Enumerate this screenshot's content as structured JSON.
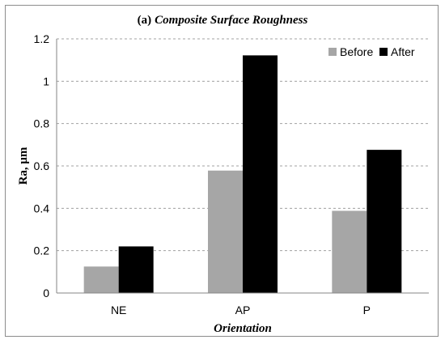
{
  "chart_data": {
    "type": "bar",
    "title_prefix": "(a)",
    "title_main": "Composite Surface Roughness",
    "xlabel": "Orientation",
    "ylabel": "Ra, μm",
    "categories": [
      "NE",
      "AP",
      "P"
    ],
    "series": [
      {
        "name": "Before",
        "values": [
          0.125,
          0.578,
          0.388
        ],
        "color": "#a6a6a6"
      },
      {
        "name": "After",
        "values": [
          0.22,
          1.122,
          0.676
        ],
        "color": "#000000"
      }
    ],
    "ylim": [
      0,
      1.2
    ],
    "yticks": [
      "0",
      "0.2",
      "0.4",
      "0.6",
      "0.8",
      "1",
      "1.2"
    ],
    "grid": true,
    "legend_position": "top-right"
  }
}
